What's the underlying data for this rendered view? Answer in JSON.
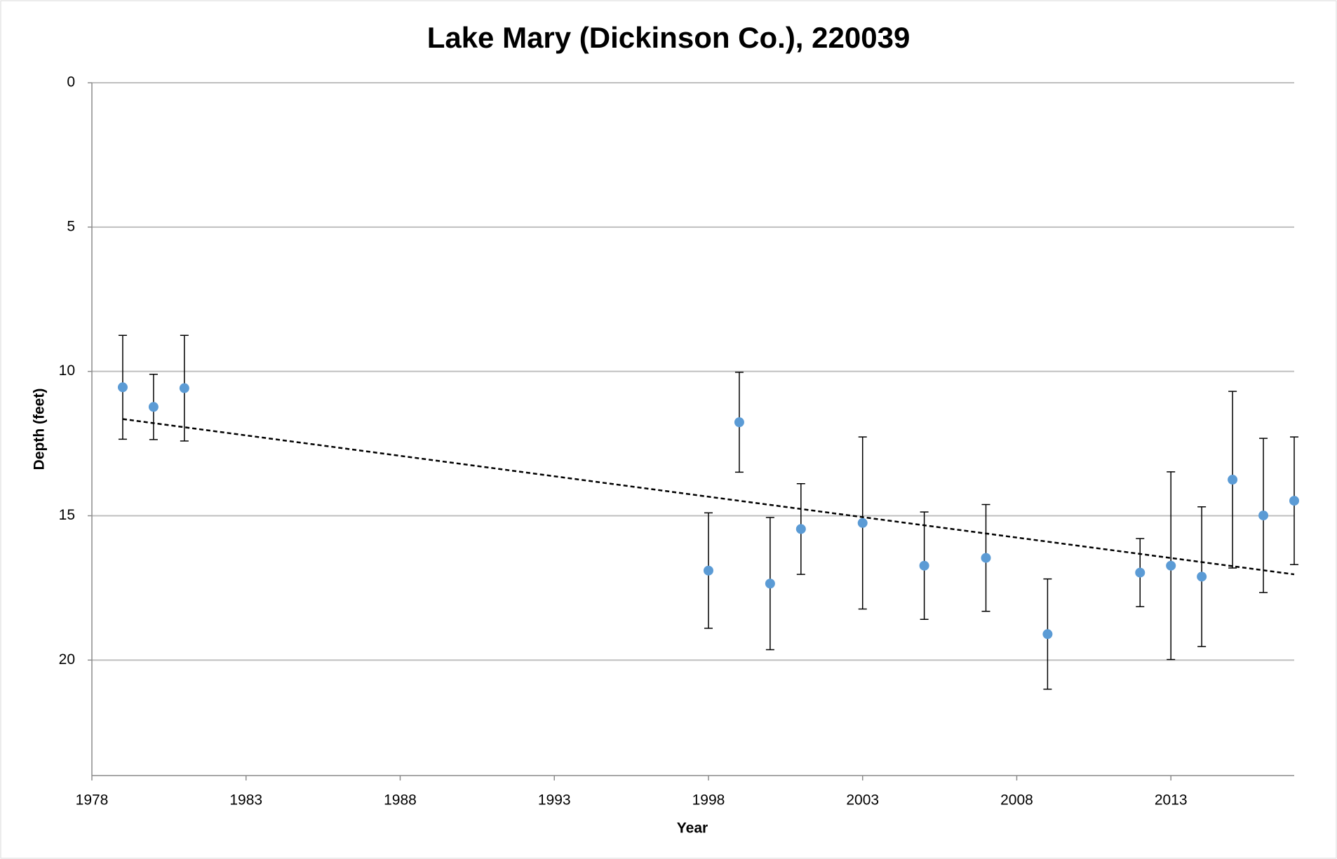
{
  "chart_data": {
    "type": "scatter",
    "title": "Lake Mary (Dickinson Co.), 220039",
    "x_label": "Year",
    "y_label": "Depth (feet)",
    "x": [
      1979,
      1980,
      1981,
      1998,
      1999,
      2000,
      2001,
      2003,
      2005,
      2007,
      2009,
      2012,
      2013,
      2014,
      2015,
      2016,
      2017
    ],
    "series": [
      {
        "color": "#5b9bd5",
        "values": [
          10.55,
          11.23,
          10.58,
          16.9,
          11.76,
          17.35,
          15.46,
          15.25,
          16.73,
          16.46,
          19.1,
          16.97,
          16.73,
          17.11,
          13.75,
          14.99,
          14.48
        ],
        "errors": [
          1.8,
          1.13,
          1.83,
          2.0,
          1.73,
          2.29,
          1.57,
          2.98,
          1.86,
          1.85,
          1.91,
          1.18,
          3.25,
          2.42,
          3.06,
          2.67,
          2.21
        ]
      }
    ],
    "trendline": {
      "x": [
        1979,
        2017
      ],
      "values": [
        11.65,
        17.03
      ]
    },
    "xlim": [
      1978,
      2017
    ],
    "xticks": [
      1978,
      1983,
      1988,
      1993,
      1998,
      2003,
      2008,
      2013
    ],
    "ylim": [
      0,
      24
    ],
    "yticks": [
      0,
      5,
      10,
      15,
      20
    ],
    "y_inverted": true,
    "grid": true
  }
}
